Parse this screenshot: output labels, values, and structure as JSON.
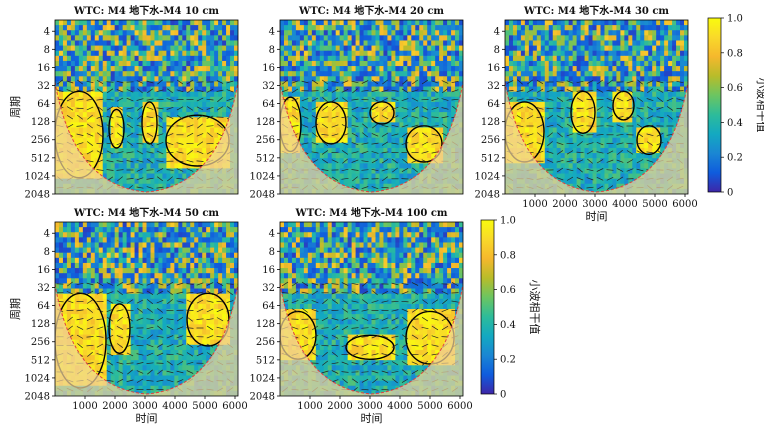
{
  "figure": {
    "ylabel": "周期",
    "xlabel": "时间",
    "colorbar_label": "小波相干值",
    "colorbar_ticks": [
      "1.0",
      "0.8",
      "0.6",
      "0.4",
      "0.2",
      "0"
    ],
    "colors": {
      "colormap": [
        "#3e26a8",
        "#0f5cdd",
        "#1a86d3",
        "#13a9c1",
        "#2dbc9a",
        "#6cc561",
        "#b8bc2a",
        "#f5b82d",
        "#f9d92a",
        "#f9fb0e"
      ],
      "cone_overlay": "#f0d29a",
      "arrow": "#222222",
      "cone_edge": "#e04040",
      "significance_contour": "#000000"
    }
  },
  "chart_data": [
    {
      "type": "heatmap",
      "title": "WTC: M4 地下水-M4 10 cm",
      "x_ticks": [
        1000,
        2000,
        3000,
        4000,
        5000,
        6000
      ],
      "y_ticks": [
        4,
        8,
        16,
        32,
        64,
        128,
        256,
        512,
        1024,
        2048
      ],
      "y_scale": "log2",
      "xlim": [
        0,
        6100
      ],
      "value_range": [
        0,
        1
      ],
      "show_xticks": false,
      "show_xlabel": false,
      "show_ylabel": true,
      "significant_regions": [
        {
          "x": [
            0,
            1600
          ],
          "period": [
            40,
            1100
          ]
        },
        {
          "x": [
            1800,
            2300
          ],
          "period": [
            80,
            350
          ]
        },
        {
          "x": [
            2900,
            3400
          ],
          "period": [
            60,
            300
          ]
        },
        {
          "x": [
            3700,
            5800
          ],
          "period": [
            100,
            700
          ]
        }
      ]
    },
    {
      "type": "heatmap",
      "title": "WTC: M4 地下水-M4 20 cm",
      "x_ticks": [
        1000,
        2000,
        3000,
        4000,
        5000,
        6000
      ],
      "y_ticks": [
        4,
        8,
        16,
        32,
        64,
        128,
        256,
        512,
        1024,
        2048
      ],
      "y_scale": "log2",
      "xlim": [
        0,
        6100
      ],
      "value_range": [
        0,
        1
      ],
      "show_xticks": false,
      "show_xlabel": false,
      "show_ylabel": false,
      "significant_regions": [
        {
          "x": [
            0,
            700
          ],
          "period": [
            50,
            400
          ]
        },
        {
          "x": [
            1200,
            2200
          ],
          "period": [
            60,
            300
          ]
        },
        {
          "x": [
            3000,
            3800
          ],
          "period": [
            60,
            140
          ]
        },
        {
          "x": [
            4200,
            5400
          ],
          "period": [
            150,
            600
          ]
        }
      ]
    },
    {
      "type": "heatmap",
      "title": "WTC: M4 地下水-M4 30 cm",
      "x_ticks": [
        1000,
        2000,
        3000,
        4000,
        5000,
        6000
      ],
      "y_ticks": [
        4,
        8,
        16,
        32,
        64,
        128,
        256,
        512,
        1024,
        2048
      ],
      "y_scale": "log2",
      "xlim": [
        0,
        6100
      ],
      "value_range": [
        0,
        1
      ],
      "show_xticks": true,
      "show_xlabel": true,
      "show_ylabel": false,
      "significant_regions": [
        {
          "x": [
            0,
            1300
          ],
          "period": [
            60,
            600
          ]
        },
        {
          "x": [
            2200,
            3000
          ],
          "period": [
            40,
            200
          ]
        },
        {
          "x": [
            3600,
            4300
          ],
          "period": [
            40,
            120
          ]
        },
        {
          "x": [
            4400,
            5200
          ],
          "period": [
            150,
            450
          ]
        }
      ]
    },
    {
      "type": "heatmap",
      "title": "WTC: M4 地下水-M4 50 cm",
      "x_ticks": [
        1000,
        2000,
        3000,
        4000,
        5000,
        6000
      ],
      "y_ticks": [
        4,
        8,
        16,
        32,
        64,
        128,
        256,
        512,
        1024,
        2048
      ],
      "y_scale": "log2",
      "xlim": [
        0,
        6100
      ],
      "value_range": [
        0,
        1
      ],
      "show_xticks": true,
      "show_xlabel": true,
      "show_ylabel": true,
      "significant_regions": [
        {
          "x": [
            0,
            1700
          ],
          "period": [
            40,
            1500
          ]
        },
        {
          "x": [
            1800,
            2500
          ],
          "period": [
            60,
            400
          ]
        },
        {
          "x": [
            4400,
            5800
          ],
          "period": [
            40,
            300
          ]
        }
      ]
    },
    {
      "type": "heatmap",
      "title": "WTC: M4 地下水-M4 100 cm",
      "x_ticks": [
        1000,
        2000,
        3000,
        4000,
        5000,
        6000
      ],
      "y_ticks": [
        4,
        8,
        16,
        32,
        64,
        128,
        256,
        512,
        1024,
        2048
      ],
      "y_scale": "log2",
      "xlim": [
        0,
        6100
      ],
      "value_range": [
        0,
        1
      ],
      "show_xticks": true,
      "show_xlabel": true,
      "show_ylabel": false,
      "significant_regions": [
        {
          "x": [
            0,
            1200
          ],
          "period": [
            80,
            500
          ]
        },
        {
          "x": [
            2200,
            3800
          ],
          "period": [
            200,
            500
          ]
        },
        {
          "x": [
            4200,
            5800
          ],
          "period": [
            80,
            600
          ]
        }
      ]
    }
  ]
}
